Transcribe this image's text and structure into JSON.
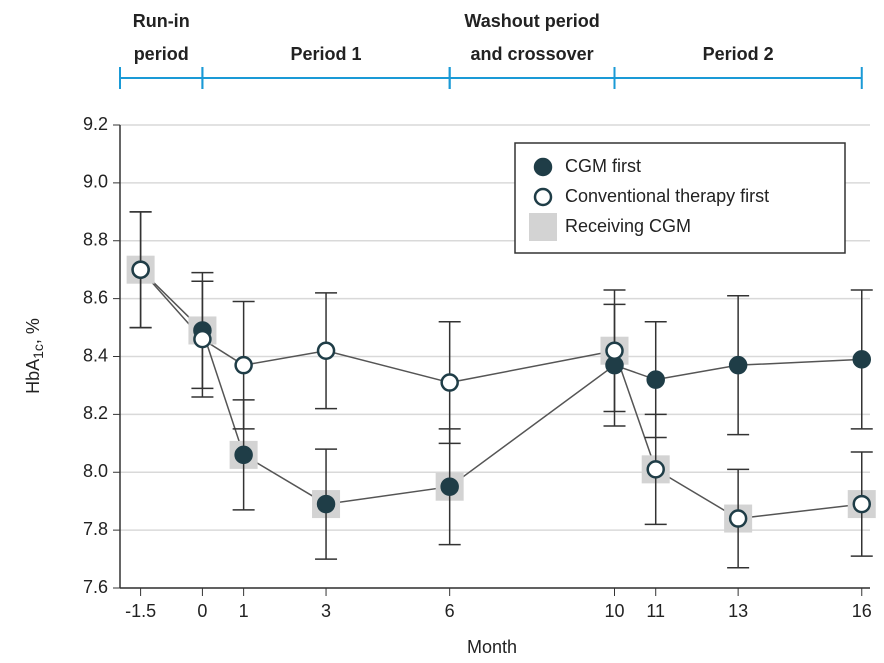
{
  "chart_data": {
    "type": "line",
    "periods": [
      {
        "label": [
          "Run-in",
          "period"
        ],
        "start": -2,
        "end": 0
      },
      {
        "label": [
          "Period 1"
        ],
        "start": 0,
        "end": 6
      },
      {
        "label": [
          "Washout period",
          "and crossover"
        ],
        "start": 6,
        "end": 10
      },
      {
        "label": [
          "Period 2"
        ],
        "start": 10,
        "end": 16
      }
    ],
    "period_color": "#1a9ad6",
    "x_label": "Month",
    "y_label": {
      "main": "HbA",
      "sub": "1c",
      "rest": ", %"
    },
    "x": [
      -1.5,
      0,
      1,
      3,
      6,
      10,
      11,
      13,
      16
    ],
    "xlim": [
      -2,
      16.2
    ],
    "xticks": [
      {
        "value": -1.5,
        "label": "-1.5"
      },
      0,
      1,
      3,
      6,
      10,
      11,
      13,
      16
    ],
    "ylim": [
      7.6,
      9.2
    ],
    "yticks": [
      {
        "value": 7.6,
        "label": "7.6"
      },
      {
        "value": 7.8,
        "label": "7.8"
      },
      {
        "value": 8.0,
        "label": "8.0"
      },
      {
        "value": 8.2,
        "label": "8.2"
      },
      {
        "value": 8.4,
        "label": "8.4"
      },
      {
        "value": 8.6,
        "label": "8.6"
      },
      {
        "value": 8.8,
        "label": "8.8"
      },
      {
        "value": 9.0,
        "label": "9.0"
      },
      {
        "value": 9.2,
        "label": "9.2"
      }
    ],
    "grid": true,
    "legend": "upper right",
    "series": [
      {
        "name": "Receiving CGM",
        "color": "#d3d3d3",
        "marker": "square",
        "values": [
          8.7,
          8.49,
          8.06,
          7.89,
          7.95,
          8.42,
          8.01,
          7.84,
          7.89
        ]
      },
      {
        "name": "CGM first",
        "color": "#1f3d47",
        "marker": "filled",
        "values": [
          8.7,
          8.49,
          8.06,
          7.89,
          7.95,
          8.37,
          8.32,
          8.37,
          8.39
        ],
        "errors": [
          0.2,
          0.2,
          0.19,
          0.19,
          0.2,
          0.21,
          0.2,
          0.24,
          0.24
        ]
      },
      {
        "name": "Conventional therapy first",
        "color": "#1f3d47",
        "marker": "open",
        "values": [
          8.7,
          8.46,
          8.37,
          8.42,
          8.31,
          8.42,
          8.01,
          7.84,
          7.89
        ],
        "errors": [
          0.2,
          0.2,
          0.22,
          0.2,
          0.21,
          0.21,
          0.19,
          0.17,
          0.18
        ]
      }
    ]
  }
}
